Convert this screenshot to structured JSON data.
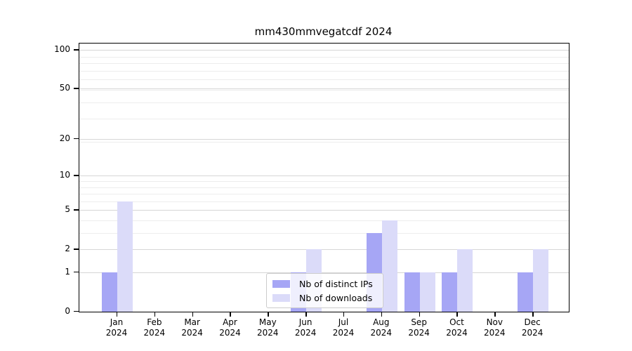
{
  "chart_data": {
    "type": "bar",
    "title": "mm430mmvegatcdf 2024",
    "categories": [
      "Jan",
      "Feb",
      "Mar",
      "Apr",
      "May",
      "Jun",
      "Jul",
      "Aug",
      "Sep",
      "Oct",
      "Nov",
      "Dec"
    ],
    "category_year": "2024",
    "series": [
      {
        "name": "Nb of distinct IPs",
        "color": "#a6a6f5",
        "values": [
          1,
          0,
          0,
          0,
          0,
          1,
          0,
          3,
          1,
          1,
          0,
          1
        ]
      },
      {
        "name": "Nb of downloads",
        "color": "#dbdbf9",
        "values": [
          6,
          0,
          0,
          0,
          0,
          2,
          0,
          4,
          1,
          2,
          0,
          2
        ]
      }
    ],
    "yscale": "log(1+x)",
    "ylim": [
      0,
      112
    ],
    "y_major_ticks": [
      0,
      1,
      2,
      5,
      10,
      20,
      50,
      100
    ],
    "y_minor_gridlines": [
      3,
      4,
      6,
      7,
      8,
      9,
      19,
      29,
      39,
      49,
      59,
      69,
      79,
      89
    ],
    "grid": true,
    "legend_position": "lower center",
    "colors": {
      "axis": "#000000",
      "grid_major": "#d6d6d6",
      "grid_minor": "#ededed",
      "background": "#ffffff"
    }
  }
}
